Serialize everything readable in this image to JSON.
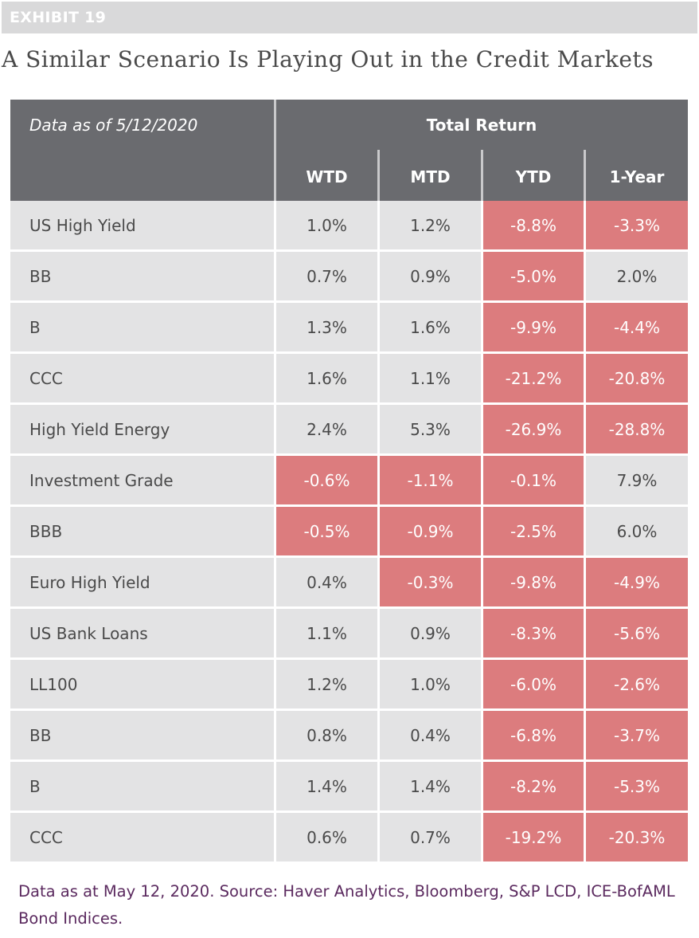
{
  "exhibit_label": "EXHIBIT 19",
  "title": "A Similar Scenario Is Playing Out in the Credit Markets",
  "table": {
    "as_of": "Data as of 5/12/2020",
    "group_header": "Total Return",
    "columns": [
      "WTD",
      "MTD",
      "YTD",
      "1-Year"
    ],
    "negative_color": "#dc7c7e",
    "neutral_color": "#e3e3e4",
    "header_color": "#6a6b6f",
    "rows": [
      {
        "label": "US High Yield",
        "values": [
          "1.0%",
          "1.2%",
          "-8.8%",
          "-3.3%"
        ],
        "highlight": [
          false,
          false,
          true,
          true
        ]
      },
      {
        "label": "BB",
        "values": [
          "0.7%",
          "0.9%",
          "-5.0%",
          "2.0%"
        ],
        "highlight": [
          false,
          false,
          true,
          false
        ]
      },
      {
        "label": "B",
        "values": [
          "1.3%",
          "1.6%",
          "-9.9%",
          "-4.4%"
        ],
        "highlight": [
          false,
          false,
          true,
          true
        ]
      },
      {
        "label": "CCC",
        "values": [
          "1.6%",
          "1.1%",
          "-21.2%",
          "-20.8%"
        ],
        "highlight": [
          false,
          false,
          true,
          true
        ]
      },
      {
        "label": "High Yield Energy",
        "values": [
          "2.4%",
          "5.3%",
          "-26.9%",
          "-28.8%"
        ],
        "highlight": [
          false,
          false,
          true,
          true
        ]
      },
      {
        "label": "Investment Grade",
        "values": [
          "-0.6%",
          "-1.1%",
          "-0.1%",
          "7.9%"
        ],
        "highlight": [
          true,
          true,
          true,
          false
        ]
      },
      {
        "label": "BBB",
        "values": [
          "-0.5%",
          "-0.9%",
          "-2.5%",
          "6.0%"
        ],
        "highlight": [
          true,
          true,
          true,
          false
        ]
      },
      {
        "label": "Euro High Yield",
        "values": [
          "0.4%",
          "-0.3%",
          "-9.8%",
          "-4.9%"
        ],
        "highlight": [
          false,
          true,
          true,
          true
        ]
      },
      {
        "label": "US Bank Loans",
        "values": [
          "1.1%",
          "0.9%",
          "-8.3%",
          "-5.6%"
        ],
        "highlight": [
          false,
          false,
          true,
          true
        ]
      },
      {
        "label": "LL100",
        "values": [
          "1.2%",
          "1.0%",
          "-6.0%",
          "-2.6%"
        ],
        "highlight": [
          false,
          false,
          true,
          true
        ]
      },
      {
        "label": "BB",
        "values": [
          "0.8%",
          "0.4%",
          "-6.8%",
          "-3.7%"
        ],
        "highlight": [
          false,
          false,
          true,
          true
        ]
      },
      {
        "label": "B",
        "values": [
          "1.4%",
          "1.4%",
          "-8.2%",
          "-5.3%"
        ],
        "highlight": [
          false,
          false,
          true,
          true
        ]
      },
      {
        "label": "CCC",
        "values": [
          "0.6%",
          "0.7%",
          "-19.2%",
          "-20.3%"
        ],
        "highlight": [
          false,
          false,
          true,
          true
        ]
      }
    ]
  },
  "footnote": "Data as at May 12, 2020. Source: Haver Analytics, Bloomberg, S&P LCD, ICE-BofAML Bond Indices."
}
